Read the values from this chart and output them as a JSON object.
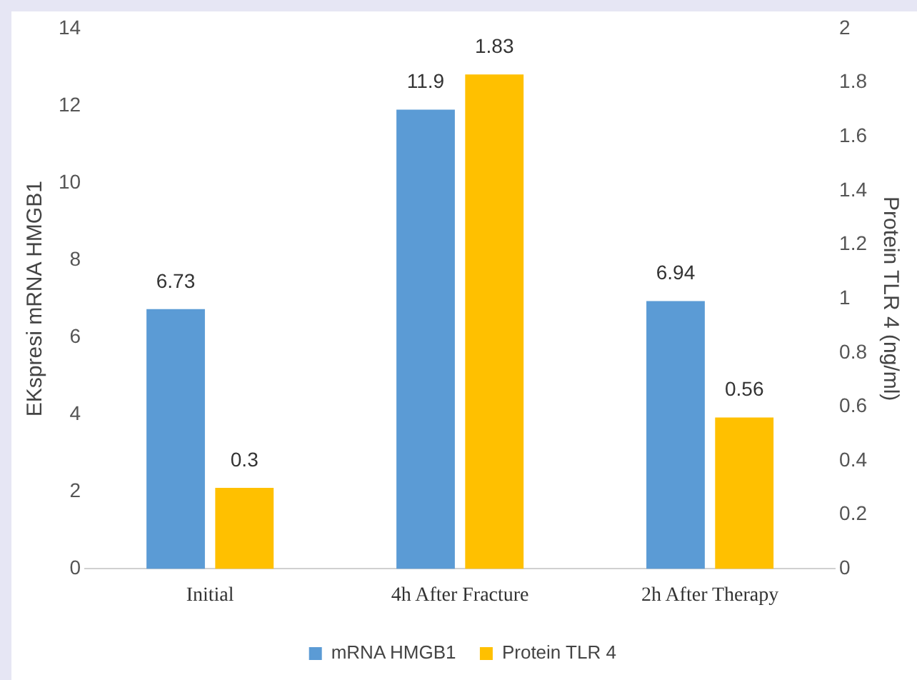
{
  "chart_data": {
    "type": "bar",
    "ylabel": "EKspresi mRNA HMGB1",
    "y2label": "Protein TLR 4 (ng/ml)",
    "categories": [
      "Initial",
      "4h After Fracture",
      "2h After Therapy"
    ],
    "series": [
      {
        "name": "mRNA HMGB1",
        "color": "#5b9bd5",
        "values": [
          6.73,
          11.9,
          6.94
        ]
      },
      {
        "name": "Protein TLR 4",
        "color": "#ffc000",
        "values": [
          0.3,
          1.83,
          0.56
        ],
        "axis": "y2"
      }
    ],
    "ylim": [
      0,
      14
    ],
    "yticks": [
      0,
      2,
      4,
      6,
      8,
      10,
      12,
      14
    ],
    "y2lim": [
      0,
      2
    ],
    "y2ticks": [
      0,
      0.2,
      0.4,
      0.6,
      0.8,
      1,
      1.2,
      1.4,
      1.6,
      1.8,
      2
    ],
    "data_labels": true,
    "grid": false,
    "legend": "bottom"
  }
}
